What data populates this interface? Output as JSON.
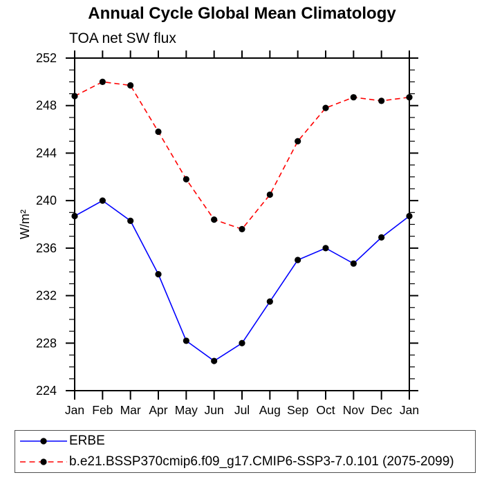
{
  "figure": {
    "title": "Annual Cycle Global Mean Climatology",
    "subtitle": "TOA net SW flux"
  },
  "chart_data": {
    "type": "line",
    "title": "Annual Cycle Global Mean Climatology",
    "subtitle": "TOA net SW flux",
    "xlabel": "",
    "ylabel": "W/m²",
    "categories": [
      "Jan",
      "Feb",
      "Mar",
      "Apr",
      "May",
      "Jun",
      "Jul",
      "Aug",
      "Sep",
      "Oct",
      "Nov",
      "Dec",
      "Jan"
    ],
    "ylim": [
      224,
      252
    ],
    "ytick_major": [
      224,
      228,
      232,
      236,
      240,
      244,
      248,
      252
    ],
    "ytick_minor_step": 1,
    "grid": false,
    "legend_position": "bottom",
    "axis_color": "#000000",
    "series": [
      {
        "name": "ERBE",
        "color": "#0000ff",
        "style": "solid",
        "marker": "circle",
        "marker_color": "#000000",
        "values": [
          238.7,
          240.0,
          238.3,
          233.8,
          228.2,
          226.5,
          228.0,
          231.5,
          235.0,
          236.0,
          234.7,
          236.9,
          238.7
        ]
      },
      {
        "name": "b.e21.BSSP370cmip6.f09_g17.CMIP6-SSP3-7.0.101 (2075-2099)",
        "color": "#ff0000",
        "style": "dashed",
        "marker": "circle",
        "marker_color": "#000000",
        "values": [
          248.8,
          250.0,
          249.7,
          245.8,
          241.8,
          238.4,
          237.6,
          240.5,
          245.0,
          247.8,
          248.7,
          248.4,
          248.7
        ]
      }
    ]
  }
}
